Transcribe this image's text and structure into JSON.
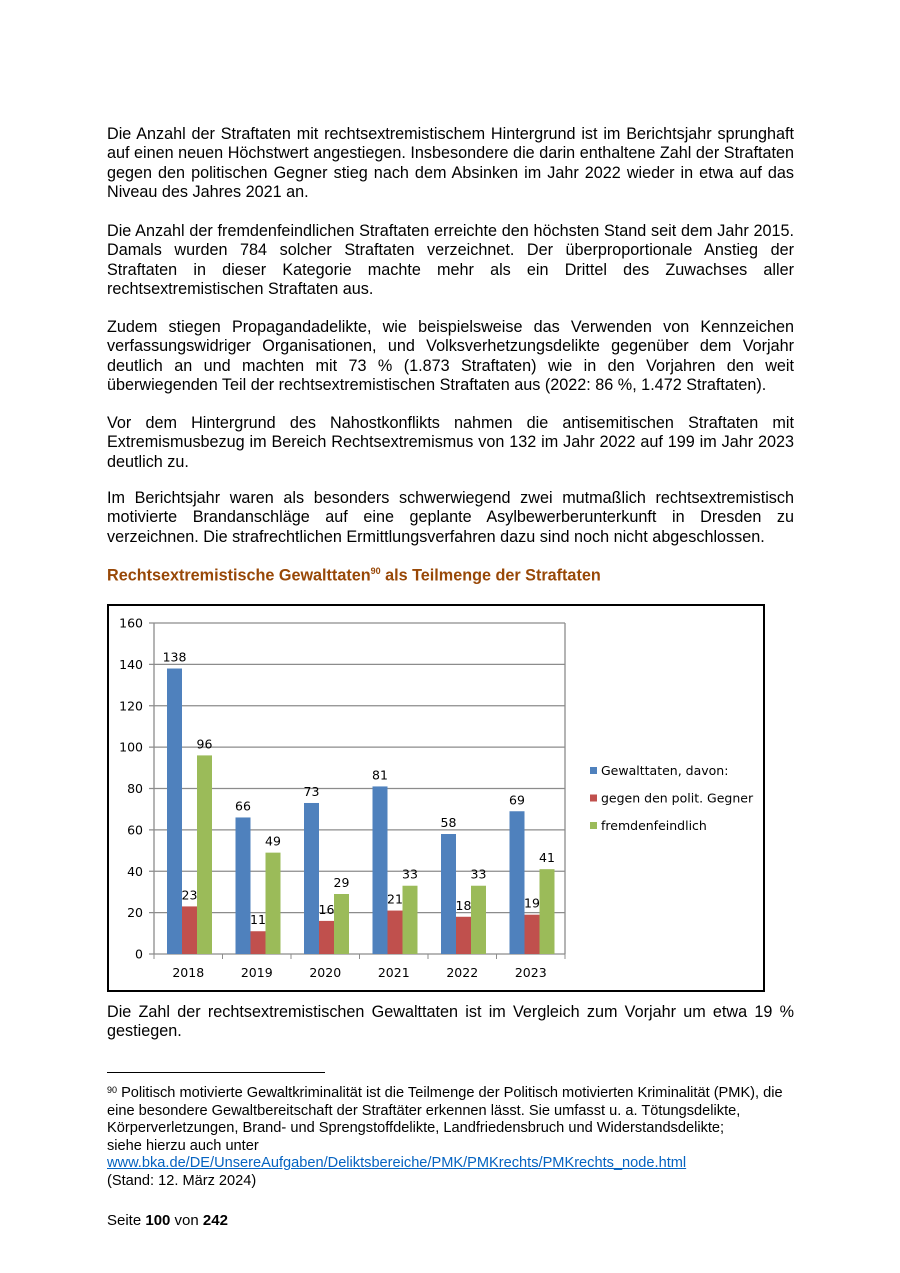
{
  "paragraphs": [
    "Die Anzahl der Straftaten mit rechtsextremistischem Hintergrund ist im Berichtsjahr sprunghaft auf einen neuen Höchstwert angestiegen. Insbesondere die darin enthaltene Zahl der Straftaten gegen den politischen Gegner stieg nach dem Absinken im Jahr 2022 wieder in etwa auf das Niveau des Jahres 2021 an.",
    "Die Anzahl der fremdenfeindlichen Straftaten erreichte den höchsten Stand seit dem Jahr 2015. Damals wurden 784 solcher Straftaten verzeichnet. Der überproportionale Anstieg der Straftaten in dieser Kategorie machte mehr als ein Drittel des Zuwachses aller rechtsextremistischen Straftaten aus.",
    "Zudem stiegen Propagandadelikte, wie beispielsweise das Verwenden von Kennzeichen verfassungswidriger Organisationen, und Volksverhetzungsdelikte gegenüber dem Vorjahr deutlich an und machten mit 73 % (1.873 Straftaten) wie in den Vorjahren den weit überwiegenden Teil der rechtsextremistischen Straftaten aus (2022: 86 %, 1.472 Straftaten).",
    "Vor dem Hintergrund des Nahostkonflikts nahmen die antisemitischen Straftaten mit Extremismusbezug im Bereich Rechtsextremismus von 132 im Jahr 2022 auf 199 im Jahr 2023 deutlich zu.",
    "Im Berichtsjahr waren als besonders schwerwiegend zwei mutmaßlich rechtsextremistisch motivierte Brandanschläge auf eine geplante Asylbewerberunterkunft in Dresden zu verzeichnen. Die strafrechtlichen Ermittlungsverfahren dazu sind noch nicht abgeschlossen."
  ],
  "chart_heading": {
    "text": "Rechtsextremistische Gewalttaten",
    "footnote_ref": "90",
    "text_after": " als Teilmenge der Straftaten",
    "color": "#984807"
  },
  "chart_data": {
    "type": "bar",
    "categories": [
      "2018",
      "2019",
      "2020",
      "2021",
      "2022",
      "2023"
    ],
    "series": [
      {
        "name": "Gewalttaten, davon:",
        "values": [
          138,
          66,
          73,
          81,
          58,
          69
        ],
        "color": "#4f81bd"
      },
      {
        "name": "gegen den polit. Gegner",
        "values": [
          23,
          11,
          16,
          21,
          18,
          19
        ],
        "color": "#c0504d"
      },
      {
        "name": "fremdenfeindlich",
        "values": [
          96,
          49,
          29,
          33,
          33,
          41
        ],
        "color": "#9bbb59"
      }
    ],
    "ylim": [
      0,
      160
    ],
    "yticks": [
      0,
      20,
      40,
      60,
      80,
      100,
      120,
      140,
      160
    ],
    "grid": true,
    "legend": "right",
    "data_labels": true
  },
  "after_chart_paragraph": "Die Zahl der rechtsextremistischen Gewalttaten ist im Vergleich zum Vorjahr um etwa 19 % gestiegen.",
  "footnote": {
    "number": "90",
    "text": "Politisch motivierte Gewaltkriminalität ist die Teilmenge der Politisch motivierten Kriminalität (PMK), die eine besondere Gewaltbereitschaft der Straftäter erkennen lässt. Sie umfasst u. a. Tötungsdelikte, Körperverletzungen, Brand- und Sprengstoffdelikte, Landfriedensbruch und Widerstandsdelikte;",
    "see_also": "siehe hierzu auch unter",
    "link": "www.bka.de/DE/UnsereAufgaben/Deliktsbereiche/PMK/PMKrechts/PMKrechts_node.html",
    "date": "(Stand: 12. März 2024)"
  },
  "page": {
    "prefix": "Seite ",
    "current": "100",
    "middle": " von ",
    "total": "242"
  }
}
